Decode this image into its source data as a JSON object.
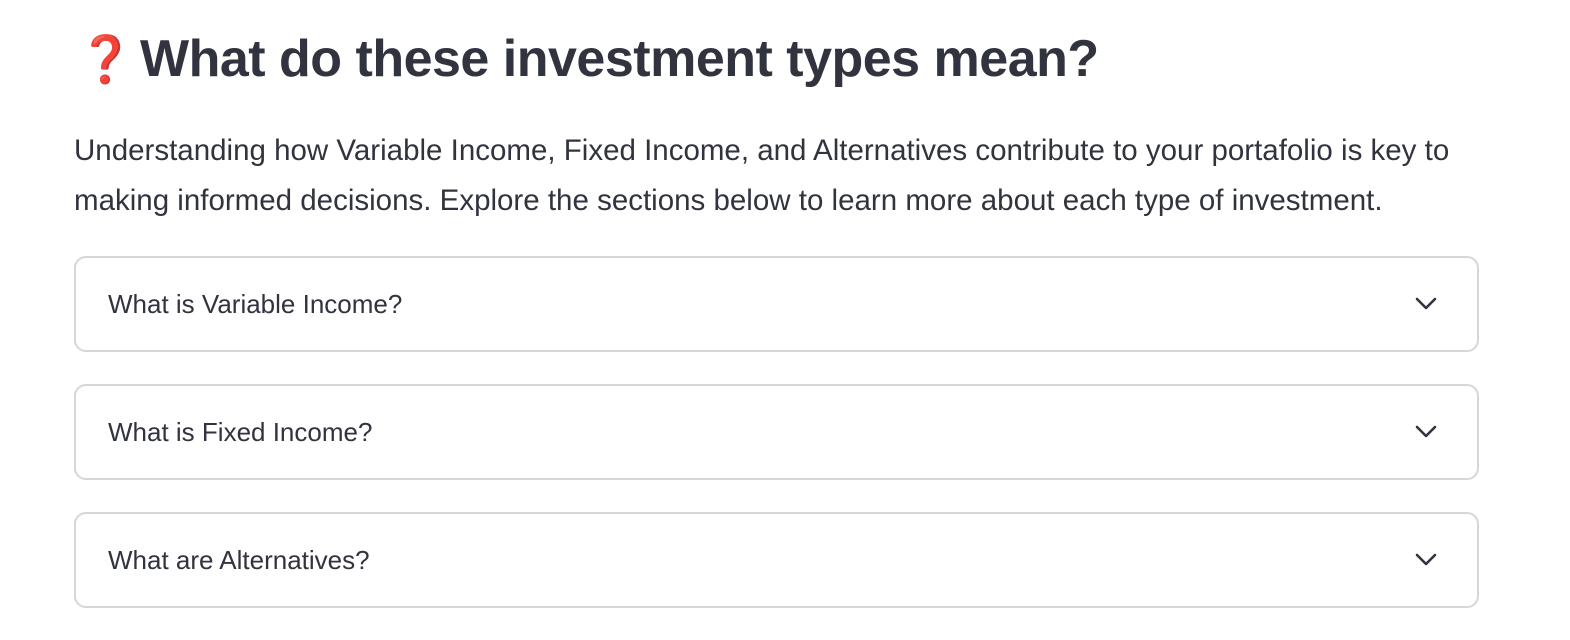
{
  "header": {
    "icon": "question-mark-icon",
    "icon_glyph": "❓",
    "icon_color": "#d42a1f",
    "title": "What do these investment types mean?"
  },
  "intro": {
    "text": "Understanding how Variable Income, Fixed Income, and Alternatives contribute to your portafolio is key to making informed decisions. Explore the sections below to learn more about each type of investment."
  },
  "expanders": [
    {
      "label": "What is Variable Income?",
      "icon": "chevron-down-icon",
      "expanded": false
    },
    {
      "label": "What is Fixed Income?",
      "icon": "chevron-down-icon",
      "expanded": false
    },
    {
      "label": "What are Alternatives?",
      "icon": "chevron-down-icon",
      "expanded": false
    }
  ],
  "colors": {
    "text": "#31333f",
    "border": "#d6d6d9",
    "accent": "#d42a1f"
  }
}
